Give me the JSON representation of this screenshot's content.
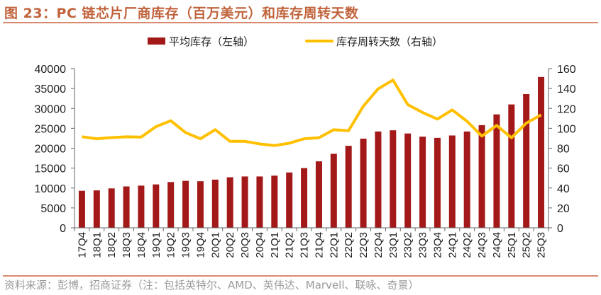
{
  "title": "图 23：PC 链芯片厂商库存（百万美元）和库存周转天数",
  "source": "资料来源：彭博，招商证券（注：包括英特尔、AMD、英伟达、Marvell、联咏、奇景）",
  "colors": {
    "bar": "#a31818",
    "line": "#ffc000",
    "title": "#c0633c"
  },
  "chart_data": {
    "type": "bar+line",
    "categories": [
      "17Q4",
      "18Q1",
      "18Q2",
      "18Q3",
      "18Q4",
      "19Q1",
      "19Q2",
      "19Q3",
      "19Q4",
      "20Q1",
      "20Q2",
      "20Q3",
      "20Q4",
      "21Q1",
      "21Q2",
      "21Q3",
      "21Q4",
      "22Q1",
      "22Q2",
      "22Q3",
      "22Q4",
      "23Q1",
      "23Q2",
      "23Q3",
      "23Q4",
      "24Q1",
      "24Q2",
      "24Q3",
      "24Q4",
      "25Q1",
      "25Q2",
      "25Q3"
    ],
    "series": [
      {
        "name": "平均库存（左轴）",
        "type": "bar",
        "axis": "left",
        "values": [
          9300,
          9400,
          9900,
          10400,
          10600,
          10900,
          11500,
          11800,
          11700,
          12100,
          12700,
          12900,
          12900,
          13100,
          13900,
          15000,
          16700,
          18600,
          20600,
          22400,
          24200,
          24500,
          23700,
          22900,
          22600,
          23200,
          24200,
          25800,
          28500,
          31000,
          33600,
          37900
        ]
      },
      {
        "name": "库存周转天数（右轴）",
        "type": "line",
        "axis": "right",
        "values": [
          91.5,
          89.5,
          90.7,
          91.5,
          91.2,
          101.7,
          107.6,
          95.7,
          89.5,
          98.6,
          86.9,
          86.9,
          84.3,
          82.7,
          85,
          89.5,
          90.5,
          98.6,
          97.6,
          122.3,
          139.7,
          148.5,
          123.8,
          115.9,
          109.3,
          118.5,
          107.1,
          92.2,
          102.9,
          90.5,
          105.2,
          113.5
        ]
      }
    ],
    "y_left": {
      "range": [
        0,
        40000
      ],
      "ticks": [
        "0",
        "5000",
        "10000",
        "15000",
        "20000",
        "25000",
        "30000",
        "35000",
        "40000"
      ]
    },
    "y_right": {
      "range": [
        0,
        160
      ],
      "ticks": [
        "0",
        "20",
        "40",
        "60",
        "80",
        "100",
        "120",
        "140",
        "160"
      ]
    },
    "grid": false,
    "legend": "top"
  }
}
